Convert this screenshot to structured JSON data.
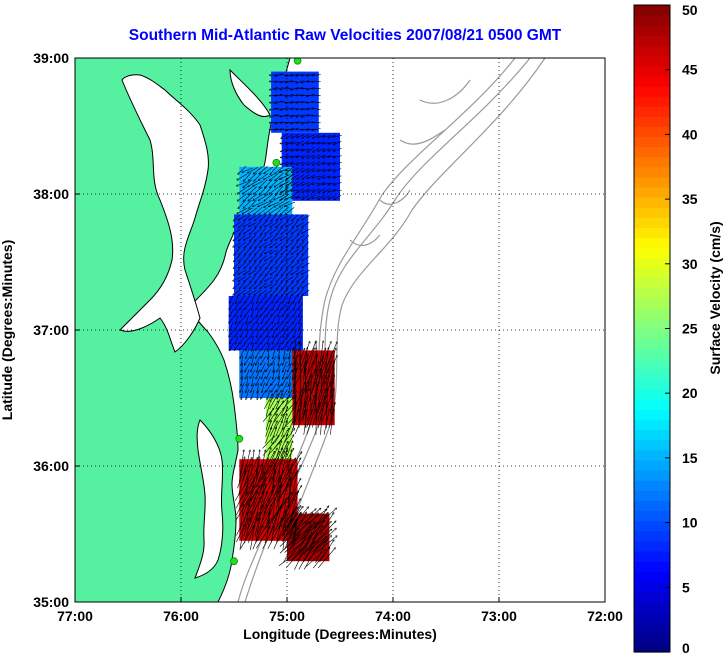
{
  "chart_data": {
    "type": "heatmap",
    "title": "Southern Mid-Atlantic Raw Velocities 2007/08/21 0500 GMT",
    "xlabel": "Longitude (Degrees:Minutes)",
    "ylabel": "Latitude (Degrees:Minutes)",
    "colorbar_label": "Surface Velocity (cm/s)",
    "xlim": [
      -77,
      -72
    ],
    "ylim": [
      35,
      39
    ],
    "x_ticks": [
      {
        "value": -77,
        "label": "77:00"
      },
      {
        "value": -76,
        "label": "76:00"
      },
      {
        "value": -75,
        "label": "75:00"
      },
      {
        "value": -74,
        "label": "74:00"
      },
      {
        "value": -73,
        "label": "73:00"
      },
      {
        "value": -72,
        "label": "72:00"
      }
    ],
    "y_ticks": [
      {
        "value": 35,
        "label": "35:00"
      },
      {
        "value": 36,
        "label": "36:00"
      },
      {
        "value": 37,
        "label": "37:00"
      },
      {
        "value": 38,
        "label": "38:00"
      },
      {
        "value": 39,
        "label": "39:00"
      }
    ],
    "colorbar": {
      "min": 0,
      "max": 50,
      "colormap": "jet",
      "ticks": [
        {
          "value": 0,
          "label": "0"
        },
        {
          "value": 5,
          "label": "5"
        },
        {
          "value": 10,
          "label": "10"
        },
        {
          "value": 15,
          "label": "15"
        },
        {
          "value": 20,
          "label": "20"
        },
        {
          "value": 25,
          "label": "25"
        },
        {
          "value": 30,
          "label": "30"
        },
        {
          "value": 35,
          "label": "35"
        },
        {
          "value": 40,
          "label": "40"
        },
        {
          "value": 45,
          "label": "45"
        },
        {
          "value": 50,
          "label": "50"
        }
      ]
    },
    "grid": true,
    "grid_style": "dotted",
    "colors": {
      "land": "#55f0a0",
      "coastline": "#000000",
      "bathymetry": "#999999",
      "title": "#0000ff",
      "station": "#22dd22"
    },
    "stations": [
      {
        "lon": -74.9,
        "lat": 38.98
      },
      {
        "lon": -75.1,
        "lat": 38.23
      },
      {
        "lon": -75.45,
        "lat": 36.2
      },
      {
        "lon": -75.5,
        "lat": 35.3
      }
    ],
    "velocity_regions": [
      {
        "lon_range": [
          -75.15,
          -74.7
        ],
        "lat_range": [
          38.45,
          38.9
        ],
        "speed_cm_s": 9,
        "direction_deg": 265
      },
      {
        "lon_range": [
          -75.05,
          -74.5
        ],
        "lat_range": [
          37.95,
          38.45
        ],
        "speed_cm_s": 8,
        "direction_deg": 250
      },
      {
        "lon_range": [
          -75.45,
          -74.95
        ],
        "lat_range": [
          37.85,
          38.2
        ],
        "speed_cm_s": 15,
        "direction_deg": 235
      },
      {
        "lon_range": [
          -75.5,
          -74.8
        ],
        "lat_range": [
          37.25,
          37.85
        ],
        "speed_cm_s": 9,
        "direction_deg": 230
      },
      {
        "lon_range": [
          -75.55,
          -74.85
        ],
        "lat_range": [
          36.85,
          37.25
        ],
        "speed_cm_s": 8,
        "direction_deg": 210
      },
      {
        "lon_range": [
          -75.45,
          -74.9
        ],
        "lat_range": [
          36.5,
          36.85
        ],
        "speed_cm_s": 12,
        "direction_deg": 200
      },
      {
        "lon_range": [
          -74.95,
          -74.55
        ],
        "lat_range": [
          36.3,
          36.85
        ],
        "speed_cm_s": 47,
        "direction_deg": 10
      },
      {
        "lon_range": [
          -75.2,
          -74.95
        ],
        "lat_range": [
          36.05,
          36.5
        ],
        "speed_cm_s": 27,
        "direction_deg": 30
      },
      {
        "lon_range": [
          -75.45,
          -74.9
        ],
        "lat_range": [
          35.45,
          36.05
        ],
        "speed_cm_s": 46,
        "direction_deg": 20
      },
      {
        "lon_range": [
          -75.0,
          -74.6
        ],
        "lat_range": [
          35.3,
          35.65
        ],
        "speed_cm_s": 48,
        "direction_deg": 40
      }
    ]
  }
}
